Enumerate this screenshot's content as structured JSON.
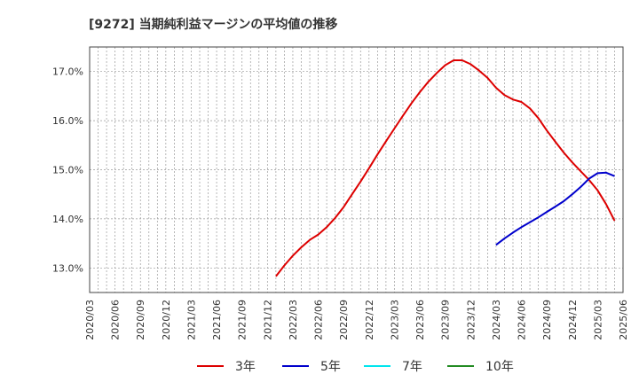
{
  "chart_data": {
    "type": "line",
    "title": "[9272]  当期純利益マージンの平均値の推移",
    "xlabel": "",
    "ylabel": "",
    "ylim": [
      12.5,
      17.5
    ],
    "y_ticks": [
      13.0,
      14.0,
      15.0,
      16.0,
      17.0
    ],
    "y_tick_labels": [
      "13.0%",
      "14.0%",
      "15.0%",
      "16.0%",
      "17.0%"
    ],
    "x_start": "2020/03",
    "x_end": "2025/06",
    "x_tick_labels": [
      "2020/03",
      "2020/06",
      "2020/09",
      "2020/12",
      "2021/03",
      "2021/06",
      "2021/09",
      "2021/12",
      "2022/03",
      "2022/06",
      "2022/09",
      "2022/12",
      "2023/03",
      "2023/06",
      "2023/09",
      "2023/12",
      "2024/03",
      "2024/06",
      "2024/09",
      "2024/12",
      "2025/03",
      "2025/06"
    ],
    "grid": true,
    "legend_position": "bottom",
    "series": [
      {
        "name": "3年",
        "color": "#dd0000",
        "points": [
          [
            "2022/01",
            12.83
          ],
          [
            "2022/02",
            13.05
          ],
          [
            "2022/03",
            13.25
          ],
          [
            "2022/04",
            13.42
          ],
          [
            "2022/05",
            13.57
          ],
          [
            "2022/06",
            13.68
          ],
          [
            "2022/07",
            13.83
          ],
          [
            "2022/08",
            14.02
          ],
          [
            "2022/09",
            14.24
          ],
          [
            "2022/10",
            14.5
          ],
          [
            "2022/11",
            14.76
          ],
          [
            "2022/12",
            15.03
          ],
          [
            "2023/01",
            15.31
          ],
          [
            "2023/02",
            15.58
          ],
          [
            "2023/03",
            15.84
          ],
          [
            "2023/04",
            16.1
          ],
          [
            "2023/05",
            16.35
          ],
          [
            "2023/06",
            16.58
          ],
          [
            "2023/07",
            16.79
          ],
          [
            "2023/08",
            16.97
          ],
          [
            "2023/09",
            17.13
          ],
          [
            "2023/10",
            17.23
          ],
          [
            "2023/11",
            17.23
          ],
          [
            "2023/12",
            17.15
          ],
          [
            "2024/01",
            17.02
          ],
          [
            "2024/02",
            16.87
          ],
          [
            "2024/03",
            16.67
          ],
          [
            "2024/04",
            16.52
          ],
          [
            "2024/05",
            16.43
          ],
          [
            "2024/06",
            16.38
          ],
          [
            "2024/07",
            16.25
          ],
          [
            "2024/08",
            16.05
          ],
          [
            "2024/09",
            15.8
          ],
          [
            "2024/10",
            15.57
          ],
          [
            "2024/11",
            15.35
          ],
          [
            "2024/12",
            15.15
          ],
          [
            "2025/01",
            14.97
          ],
          [
            "2025/02",
            14.79
          ],
          [
            "2025/03",
            14.58
          ],
          [
            "2025/04",
            14.3
          ],
          [
            "2025/05",
            13.96
          ]
        ]
      },
      {
        "name": "5年",
        "color": "#0000cc",
        "points": [
          [
            "2024/03",
            13.47
          ],
          [
            "2024/04",
            13.6
          ],
          [
            "2024/05",
            13.72
          ],
          [
            "2024/06",
            13.83
          ],
          [
            "2024/07",
            13.93
          ],
          [
            "2024/08",
            14.03
          ],
          [
            "2024/09",
            14.14
          ],
          [
            "2024/10",
            14.25
          ],
          [
            "2024/11",
            14.36
          ],
          [
            "2024/12",
            14.5
          ],
          [
            "2025/01",
            14.65
          ],
          [
            "2025/02",
            14.82
          ],
          [
            "2025/03",
            14.93
          ],
          [
            "2025/04",
            14.94
          ],
          [
            "2025/05",
            14.87
          ]
        ]
      },
      {
        "name": "7年",
        "color": "#00e5ee",
        "points": []
      },
      {
        "name": "10年",
        "color": "#228b22",
        "points": []
      }
    ]
  }
}
